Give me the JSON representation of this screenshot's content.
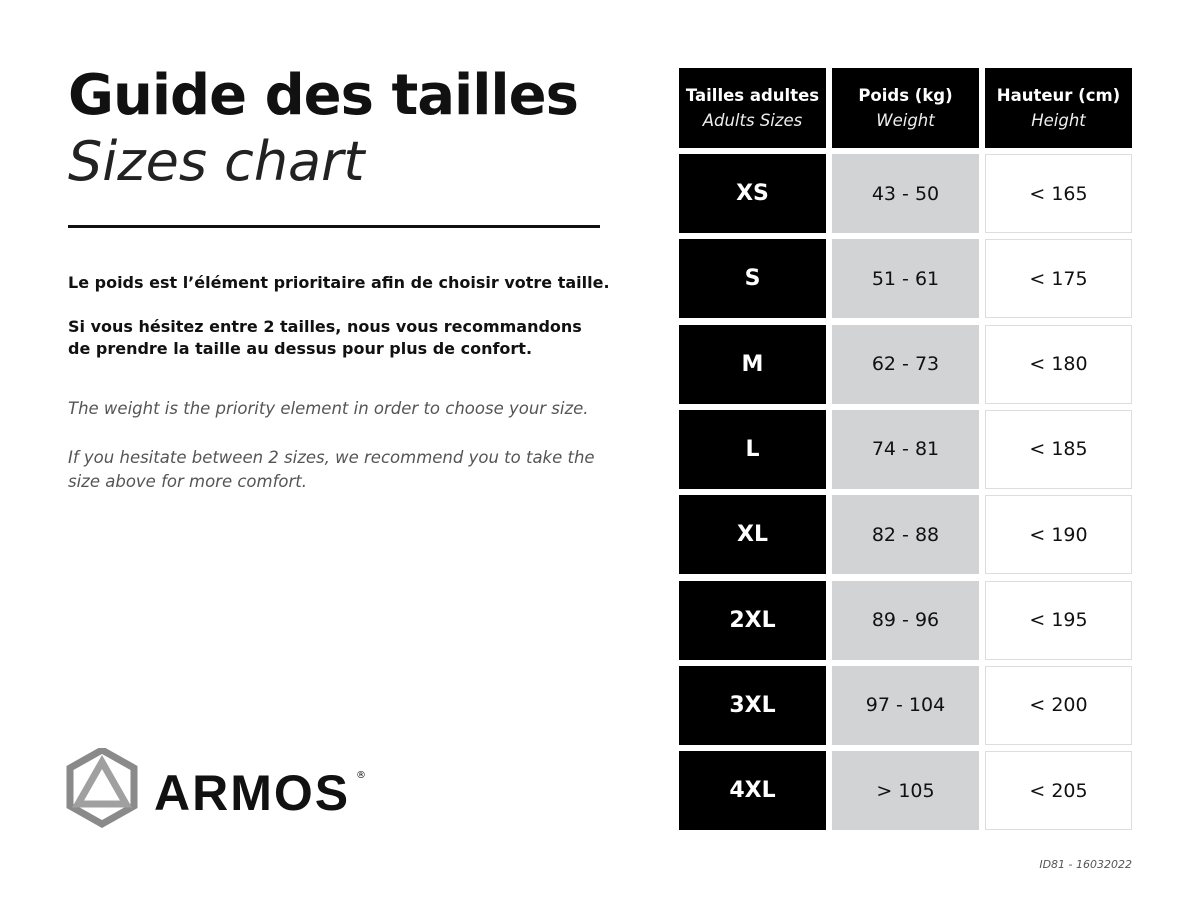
{
  "title": "Guide des tailles",
  "subtitle": "Sizes chart",
  "text_fr": [
    "Le poids est l’élément prioritaire afin de choisir votre taille.",
    "Si vous hésitez entre 2 tailles, nous vous recommandons de prendre la taille au dessus pour plus de confort."
  ],
  "text_en": [
    "The weight is the priority element in order to choose your size.",
    "If you hesitate between 2 sizes, we recommend you to take the size above for more comfort."
  ],
  "table": {
    "headers": [
      {
        "fr": "Tailles adultes",
        "en": "Adults Sizes"
      },
      {
        "fr": "Poids (kg)",
        "en": "Weight"
      },
      {
        "fr": "Hauteur (cm)",
        "en": "Height"
      }
    ],
    "rows": [
      {
        "size": "XS",
        "weight": "43 - 50",
        "height": "< 165"
      },
      {
        "size": "S",
        "weight": "51 - 61",
        "height": "< 175"
      },
      {
        "size": "M",
        "weight": "62 - 73",
        "height": "< 180"
      },
      {
        "size": "L",
        "weight": "74 - 81",
        "height": "< 185"
      },
      {
        "size": "XL",
        "weight": "82 - 88",
        "height": "< 190"
      },
      {
        "size": "2XL",
        "weight": "89 - 96",
        "height": "< 195"
      },
      {
        "size": "3XL",
        "weight": "97 - 104",
        "height": "< 200"
      },
      {
        "size": "4XL",
        "weight": "> 105",
        "height": "< 205"
      }
    ]
  },
  "logo": {
    "text": "ARMOS",
    "mark": "®"
  },
  "footer_id": "ID81 - 16032022",
  "colors": {
    "header_bg": "#000000",
    "weight_bg": "#d2d3d4"
  }
}
